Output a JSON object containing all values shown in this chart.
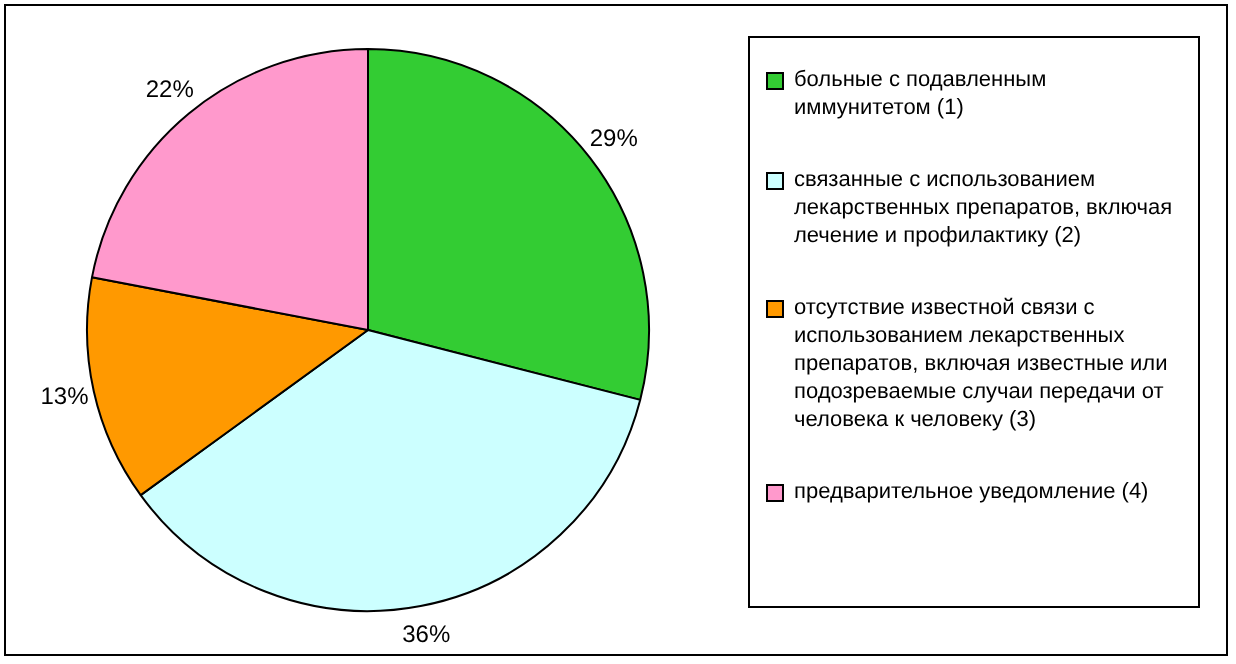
{
  "chart_data": {
    "type": "pie",
    "categories": [
      "больные с подавленным иммунитетом (1)",
      "связанные с использованием лекарственных препаратов, включая лечение и профилактику (2)",
      "отсутствие известной связи с использованием лекарственных препаратов, включая известные или подозреваемые случаи передачи от человека к человеку (3)",
      "предварительное уведомление (4)"
    ],
    "values": [
      29,
      36,
      13,
      22
    ],
    "colors": [
      "#33cc33",
      "#ccffff",
      "#ff9900",
      "#ff99cc"
    ],
    "value_labels": [
      "29%",
      "36%",
      "13%",
      "22%"
    ],
    "legend": "right"
  }
}
